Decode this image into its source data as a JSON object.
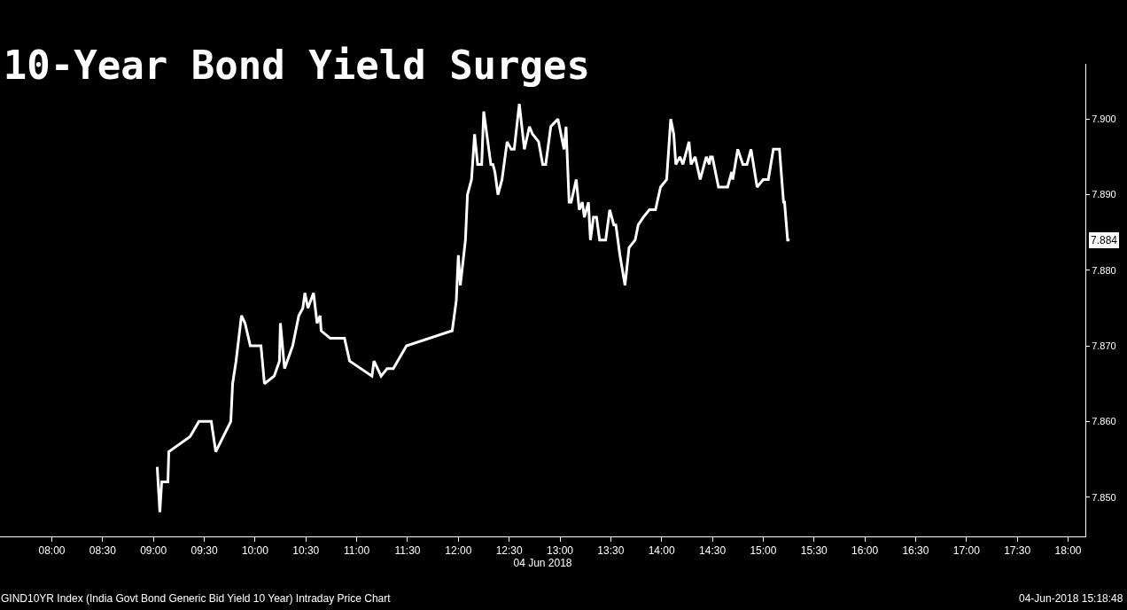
{
  "chart_data": {
    "type": "line",
    "title": "10-Year Bond Yield Surges",
    "xlabel": "04 Jun 2018",
    "x": [
      9.037,
      9.063,
      9.081,
      9.142,
      9.151,
      9.36,
      9.447,
      9.569,
      9.613,
      9.761,
      9.779,
      9.813,
      9.866,
      9.901,
      9.953,
      10.058,
      10.092,
      10.188,
      10.24,
      10.249,
      10.29,
      10.37,
      10.43,
      10.47,
      10.49,
      10.52,
      10.575,
      10.61,
      10.64,
      10.65,
      10.74,
      10.88,
      10.93,
      11.15,
      11.17,
      11.24,
      11.3,
      11.36,
      11.49,
      11.94,
      11.98,
      12.0,
      12.02,
      12.07,
      12.09,
      12.13,
      12.16,
      12.19,
      12.23,
      12.25,
      12.3,
      12.32,
      12.34,
      12.36,
      12.39,
      12.43,
      12.48,
      12.52,
      12.55,
      12.6,
      12.65,
      12.7,
      12.73,
      12.79,
      12.83,
      12.86,
      12.91,
      12.98,
      13.04,
      13.06,
      13.09,
      13.11,
      13.16,
      13.19,
      13.22,
      13.24,
      13.28,
      13.3,
      13.33,
      13.36,
      13.39,
      13.45,
      13.49,
      13.53,
      13.55,
      13.59,
      13.64,
      13.68,
      13.74,
      13.77,
      13.82,
      13.88,
      13.94,
      13.99,
      14.05,
      14.07,
      14.09,
      14.12,
      14.14,
      14.18,
      14.21,
      14.27,
      14.29,
      14.33,
      14.38,
      14.44,
      14.47,
      14.48,
      14.5,
      14.56,
      14.63,
      14.65,
      14.69,
      14.7,
      14.75,
      14.8,
      14.84,
      14.88,
      14.94,
      15.0,
      15.05,
      15.1,
      15.14,
      15.16,
      15.2,
      15.21,
      15.24,
      15.26
    ],
    "series": [
      {
        "color": "#ffffff",
        "values": [
          7.854,
          7.848,
          7.852,
          7.852,
          7.856,
          7.858,
          7.86,
          7.86,
          7.856,
          7.86,
          7.865,
          7.868,
          7.874,
          7.873,
          7.87,
          7.87,
          7.865,
          7.866,
          7.868,
          7.873,
          7.867,
          7.87,
          7.874,
          7.875,
          7.877,
          7.875,
          7.877,
          7.873,
          7.874,
          7.872,
          7.871,
          7.871,
          7.868,
          7.866,
          7.868,
          7.866,
          7.867,
          7.867,
          7.87,
          7.872,
          7.876,
          7.882,
          7.878,
          7.884,
          7.89,
          7.892,
          7.898,
          7.894,
          7.894,
          7.901,
          7.896,
          7.894,
          7.894,
          7.893,
          7.89,
          7.892,
          7.897,
          7.896,
          7.896,
          7.902,
          7.896,
          7.899,
          7.898,
          7.897,
          7.894,
          7.894,
          7.899,
          7.9,
          7.896,
          7.899,
          7.889,
          7.889,
          7.892,
          7.888,
          7.889,
          7.887,
          7.889,
          7.884,
          7.887,
          7.887,
          7.884,
          7.884,
          7.888,
          7.886,
          7.886,
          7.882,
          7.878,
          7.883,
          7.884,
          7.886,
          7.887,
          7.888,
          7.888,
          7.891,
          7.892,
          7.896,
          7.9,
          7.898,
          7.894,
          7.895,
          7.894,
          7.897,
          7.894,
          7.895,
          7.892,
          7.895,
          7.894,
          7.895,
          7.895,
          7.891,
          7.891,
          7.891,
          7.893,
          7.892,
          7.896,
          7.894,
          7.894,
          7.896,
          7.891,
          7.892,
          7.892,
          7.896,
          7.896,
          7.896,
          7.889,
          7.889,
          7.884,
          7.884
        ]
      }
    ],
    "xlim": [
      7.49,
      18.17
    ],
    "xticks": [
      {
        "value": 8,
        "label": "08:00"
      },
      {
        "value": 8.5,
        "label": "08:30"
      },
      {
        "value": 9,
        "label": "09:00"
      },
      {
        "value": 9.5,
        "label": "09:30"
      },
      {
        "value": 10,
        "label": "10:00"
      },
      {
        "value": 10.5,
        "label": "10:30"
      },
      {
        "value": 11,
        "label": "11:00"
      },
      {
        "value": 11.5,
        "label": "11:30"
      },
      {
        "value": 12,
        "label": "12:00"
      },
      {
        "value": 12.5,
        "label": "12:30"
      },
      {
        "value": 13,
        "label": "13:00"
      },
      {
        "value": 13.5,
        "label": "13:30"
      },
      {
        "value": 14,
        "label": "14:00"
      },
      {
        "value": 14.5,
        "label": "14:30"
      },
      {
        "value": 15,
        "label": "15:00"
      },
      {
        "value": 15.5,
        "label": "15:30"
      },
      {
        "value": 16,
        "label": "16:00"
      },
      {
        "value": 16.5,
        "label": "16:30"
      },
      {
        "value": 17,
        "label": "17:00"
      },
      {
        "value": 17.5,
        "label": "17:30"
      },
      {
        "value": 18,
        "label": "18:00"
      }
    ],
    "ylim": [
      7.8448,
      7.9073
    ],
    "yticks": [
      {
        "value": 7.85,
        "label": "7.850"
      },
      {
        "value": 7.86,
        "label": "7.860"
      },
      {
        "value": 7.87,
        "label": "7.870"
      },
      {
        "value": 7.88,
        "label": "7.880"
      },
      {
        "value": 7.89,
        "label": "7.890"
      },
      {
        "value": 7.9,
        "label": "7.900"
      }
    ],
    "marker": "none",
    "line_style": "solid",
    "annotations": [
      "7.884",
      "GIND10YR Index (India Govt Bond Generic Bid Yield 10 Year) Intraday Price Chart",
      "04-Jun-2018 15:18:48"
    ]
  }
}
